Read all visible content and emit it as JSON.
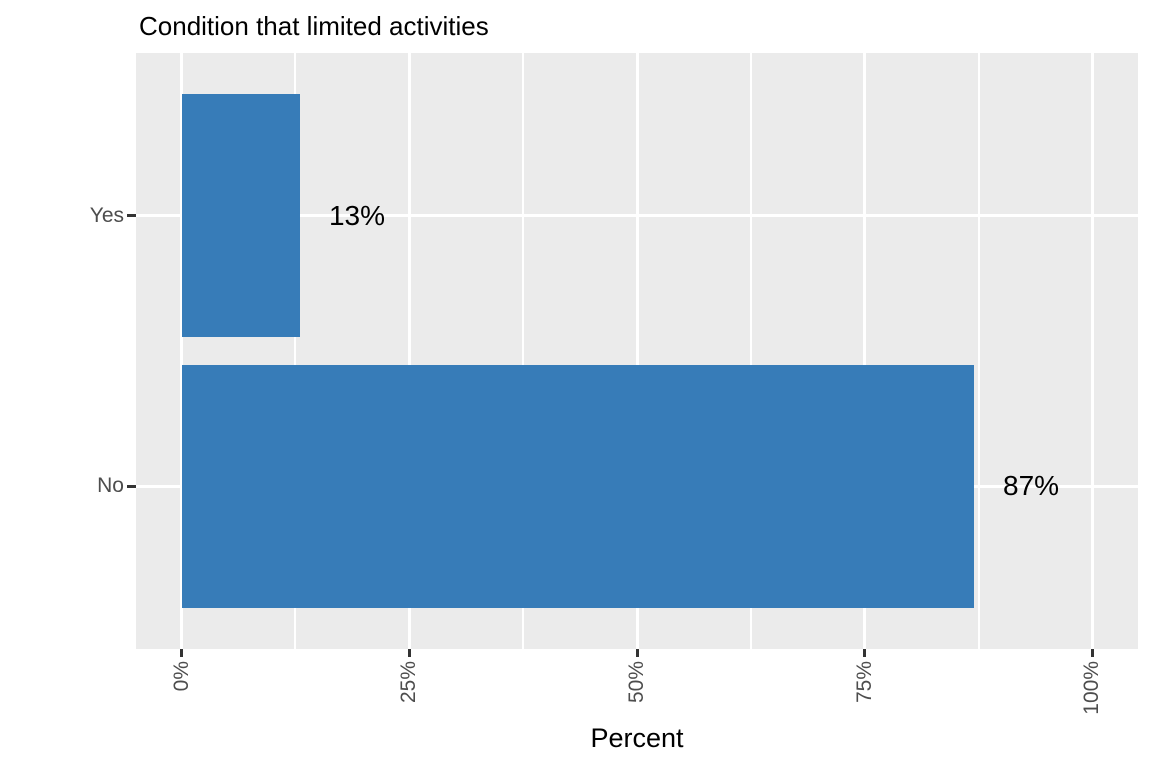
{
  "figure": {
    "background": "#FFFFFF"
  },
  "chart_data": {
    "type": "bar",
    "orientation": "horizontal",
    "title": "Condition that limited activities",
    "xlabel": "Percent",
    "ylabel": "",
    "categories": [
      "Yes",
      "No"
    ],
    "values": [
      13,
      87
    ],
    "bar_labels": [
      "13%",
      "87%"
    ],
    "x_major_ticks": [
      0,
      25,
      50,
      75,
      100
    ],
    "x_tick_labels": [
      "0%",
      "25%",
      "50%",
      "75%",
      "100%"
    ],
    "x_minor_gridlines": [
      12.5,
      37.5,
      62.5,
      87.5
    ],
    "xlim": [
      0,
      100
    ],
    "x_tick_label_angle": 90,
    "legend": false,
    "grid": "white major and minor vertical, major horizontal on gray panel",
    "colors": {
      "bar_fill": "#377CB8",
      "panel_bg": "#EBEBEB",
      "grid": "#FFFFFF",
      "axis_text": "#4D4D4D",
      "tick_mark": "#333333",
      "text": "#000000",
      "background": "#FFFFFF"
    }
  }
}
